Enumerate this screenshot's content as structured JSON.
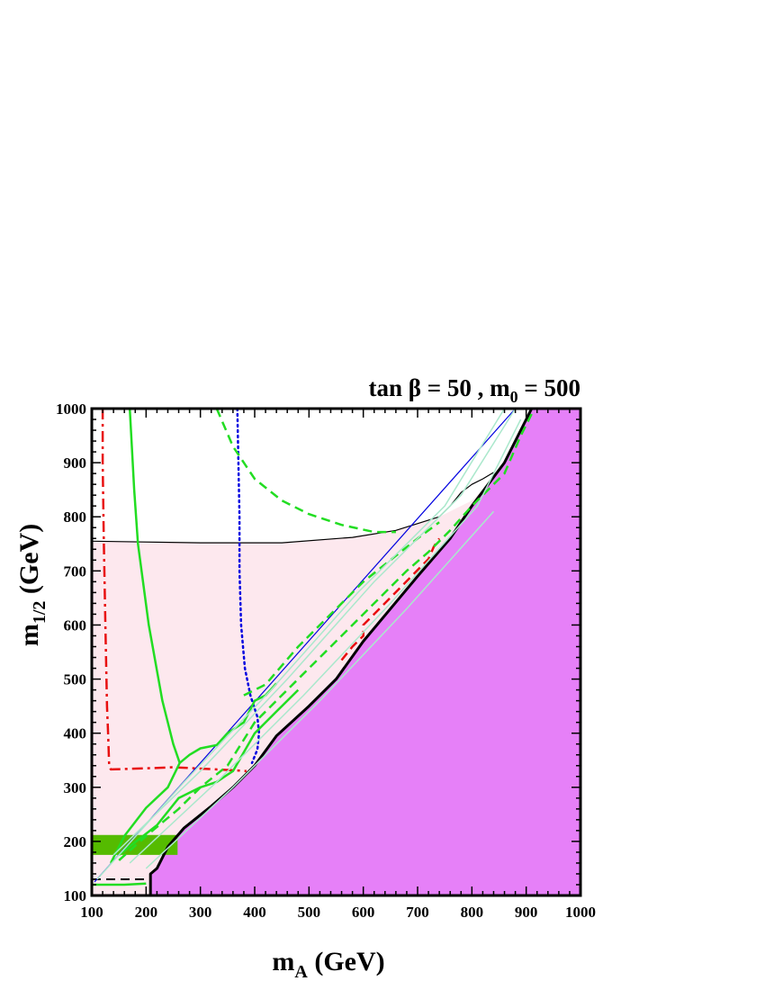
{
  "chart_data": {
    "type": "area",
    "title": "tan β = 50 , m",
    "title_sub": "0",
    "title_tail": " = 500",
    "xlabel": "m",
    "xlabel_sub": "A",
    "xlabel_tail": " (GeV)",
    "ylabel": "m",
    "ylabel_sub": "1/2",
    "ylabel_tail": " (GeV)",
    "xlim": [
      100,
      1000
    ],
    "ylim": [
      100,
      1000
    ],
    "xticks": [
      100,
      200,
      300,
      400,
      500,
      600,
      700,
      800,
      900,
      1000
    ],
    "yticks": [
      100,
      200,
      300,
      400,
      500,
      600,
      700,
      800,
      900,
      1000
    ],
    "grid": false,
    "colors": {
      "excluded": "#e680f8",
      "pink_region": "#fde8ee",
      "green_band": "#55bb00",
      "green": "#22dd22",
      "light_green": "#aae8cc",
      "red": "#e81010",
      "blue": "#0000e0",
      "black": "#000000"
    },
    "regions": [
      {
        "id": "excluded",
        "points": [
          [
            208,
            100
          ],
          [
            208,
            140
          ],
          [
            220,
            150
          ],
          [
            240,
            190
          ],
          [
            270,
            225
          ],
          [
            320,
            265
          ],
          [
            360,
            300
          ],
          [
            400,
            340
          ],
          [
            440,
            395
          ],
          [
            500,
            450
          ],
          [
            550,
            500
          ],
          [
            600,
            570
          ],
          [
            650,
            630
          ],
          [
            700,
            690
          ],
          [
            760,
            760
          ],
          [
            800,
            820
          ],
          [
            830,
            860
          ],
          [
            860,
            900
          ],
          [
            900,
            980
          ],
          [
            910,
            1000
          ],
          [
            1000,
            1000
          ],
          [
            1000,
            100
          ]
        ]
      },
      {
        "id": "pink",
        "points": [
          [
            100,
            100
          ],
          [
            100,
            755
          ],
          [
            300,
            752
          ],
          [
            450,
            752
          ],
          [
            580,
            762
          ],
          [
            660,
            775
          ],
          [
            740,
            800
          ],
          [
            800,
            830
          ],
          [
            830,
            860
          ],
          [
            800,
            820
          ],
          [
            760,
            760
          ],
          [
            700,
            690
          ],
          [
            650,
            630
          ],
          [
            600,
            570
          ],
          [
            550,
            500
          ],
          [
            500,
            450
          ],
          [
            440,
            395
          ],
          [
            400,
            340
          ],
          [
            360,
            300
          ],
          [
            320,
            265
          ],
          [
            270,
            225
          ],
          [
            240,
            190
          ],
          [
            220,
            150
          ],
          [
            208,
            140
          ],
          [
            208,
            100
          ]
        ]
      },
      {
        "id": "green-band",
        "points": [
          [
            100,
            175
          ],
          [
            258,
            175
          ],
          [
            258,
            212
          ],
          [
            100,
            212
          ]
        ]
      }
    ],
    "curves": [
      {
        "id": "black-thin",
        "style": "solid",
        "color": "black",
        "width": 1.2,
        "points": [
          [
            100,
            755
          ],
          [
            300,
            752
          ],
          [
            450,
            752
          ],
          [
            580,
            762
          ],
          [
            660,
            775
          ],
          [
            740,
            800
          ],
          [
            760,
            820
          ],
          [
            780,
            845
          ],
          [
            800,
            860
          ],
          [
            820,
            870
          ],
          [
            840,
            882
          ]
        ]
      },
      {
        "id": "black-thick",
        "style": "solid",
        "color": "black",
        "width": 3,
        "points": [
          [
            208,
            100
          ],
          [
            208,
            140
          ],
          [
            220,
            150
          ],
          [
            240,
            190
          ],
          [
            270,
            225
          ],
          [
            320,
            265
          ],
          [
            360,
            300
          ],
          [
            400,
            340
          ],
          [
            440,
            395
          ],
          [
            500,
            450
          ],
          [
            550,
            500
          ],
          [
            600,
            570
          ],
          [
            650,
            630
          ],
          [
            700,
            690
          ],
          [
            760,
            760
          ],
          [
            800,
            820
          ],
          [
            830,
            860
          ],
          [
            860,
            900
          ],
          [
            900,
            980
          ],
          [
            910,
            1000
          ]
        ]
      },
      {
        "id": "black-dashed",
        "style": "dashed",
        "color": "black",
        "width": 2,
        "points": [
          [
            100,
            130
          ],
          [
            208,
            130
          ]
        ]
      },
      {
        "id": "red-dashdot",
        "style": "dashdot",
        "color": "red",
        "width": 2.5,
        "points": [
          [
            120,
            1000
          ],
          [
            120,
            900
          ],
          [
            122,
            760
          ],
          [
            125,
            600
          ],
          [
            128,
            450
          ],
          [
            130,
            400
          ],
          [
            132,
            340
          ],
          [
            135,
            333
          ],
          [
            200,
            335
          ],
          [
            250,
            337
          ],
          [
            330,
            333
          ],
          [
            385,
            330
          ]
        ]
      },
      {
        "id": "red-dashed-lower",
        "style": "dashed",
        "color": "red",
        "width": 2.5,
        "points": [
          [
            560,
            535
          ],
          [
            580,
            560
          ],
          [
            600,
            580
          ],
          [
            600,
            600
          ],
          [
            610,
            610
          ],
          [
            620,
            620
          ],
          [
            720,
            722
          ],
          [
            730,
            745
          ],
          [
            740,
            760
          ]
        ]
      },
      {
        "id": "blue-diagonal",
        "style": "solid",
        "color": "blue",
        "width": 1.2,
        "points": [
          [
            105,
            125
          ],
          [
            880,
            1000
          ]
        ]
      },
      {
        "id": "blue-dotted",
        "style": "dotted",
        "color": "blue",
        "width": 2.5,
        "points": [
          [
            368,
            1000
          ],
          [
            370,
            900
          ],
          [
            372,
            800
          ],
          [
            372,
            700
          ],
          [
            375,
            600
          ],
          [
            382,
            520
          ],
          [
            392,
            470
          ],
          [
            405,
            430
          ],
          [
            408,
            400
          ],
          [
            405,
            370
          ],
          [
            395,
            345
          ]
        ]
      },
      {
        "id": "green-solid-left",
        "style": "solid",
        "color": "green",
        "width": 2.5,
        "points": [
          [
            170,
            1000
          ],
          [
            178,
            850
          ],
          [
            185,
            750
          ],
          [
            205,
            600
          ],
          [
            230,
            460
          ],
          [
            250,
            380
          ],
          [
            262,
            345
          ]
        ]
      },
      {
        "id": "green-solid-band",
        "style": "solid",
        "color": "green",
        "width": 2.5,
        "points": [
          [
            135,
            160
          ],
          [
            160,
            210
          ],
          [
            200,
            262
          ],
          [
            240,
            300
          ],
          [
            262,
            345
          ],
          [
            280,
            360
          ],
          [
            300,
            372
          ],
          [
            330,
            378
          ],
          [
            350,
            400
          ],
          [
            380,
            420
          ],
          [
            400,
            460
          ],
          [
            420,
            470
          ],
          [
            440,
            492
          ]
        ]
      },
      {
        "id": "green-solid-low",
        "style": "solid",
        "color": "green",
        "width": 2.5,
        "points": [
          [
            100,
            120
          ],
          [
            160,
            120
          ],
          [
            200,
            122
          ]
        ]
      },
      {
        "id": "green-solid-mid",
        "style": "solid",
        "color": "green",
        "width": 2.5,
        "points": [
          [
            150,
            175
          ],
          [
            220,
            230
          ],
          [
            260,
            280
          ],
          [
            300,
            300
          ],
          [
            330,
            310
          ],
          [
            360,
            330
          ],
          [
            400,
            400
          ],
          [
            440,
            440
          ],
          [
            480,
            480
          ]
        ]
      },
      {
        "id": "green-dashed-upper",
        "style": "dashed",
        "color": "green",
        "width": 2.5,
        "points": [
          [
            330,
            1000
          ],
          [
            360,
            930
          ],
          [
            400,
            870
          ],
          [
            450,
            830
          ],
          [
            500,
            805
          ],
          [
            560,
            785
          ],
          [
            620,
            772
          ],
          [
            660,
            772
          ]
        ]
      },
      {
        "id": "green-dashed-lower",
        "style": "dashed",
        "color": "green",
        "width": 2.5,
        "points": [
          [
            150,
            165
          ],
          [
            200,
            210
          ],
          [
            260,
            260
          ],
          [
            300,
            300
          ],
          [
            350,
            340
          ],
          [
            400,
            420
          ],
          [
            440,
            460
          ],
          [
            500,
            520
          ],
          [
            560,
            580
          ],
          [
            620,
            640
          ],
          [
            680,
            700
          ],
          [
            720,
            735
          ],
          [
            760,
            775
          ],
          [
            800,
            820
          ],
          [
            830,
            850
          ],
          [
            860,
            880
          ],
          [
            890,
            950
          ],
          [
            910,
            990
          ]
        ]
      },
      {
        "id": "green-dashed-mid",
        "style": "dashed",
        "color": "green",
        "width": 2.5,
        "points": [
          [
            380,
            470
          ],
          [
            420,
            490
          ],
          [
            480,
            560
          ],
          [
            540,
            620
          ],
          [
            600,
            680
          ],
          [
            650,
            720
          ],
          [
            700,
            760
          ],
          [
            740,
            790
          ]
        ]
      },
      {
        "id": "light-green-1",
        "style": "solid",
        "color": "light_green",
        "width": 1.5,
        "points": [
          [
            140,
            175
          ],
          [
            300,
            330
          ],
          [
            460,
            500
          ],
          [
            620,
            680
          ],
          [
            780,
            840
          ],
          [
            880,
            1000
          ]
        ]
      },
      {
        "id": "light-green-2",
        "style": "solid",
        "color": "light_green",
        "width": 1.5,
        "points": [
          [
            110,
            130
          ],
          [
            270,
            310
          ],
          [
            430,
            480
          ],
          [
            590,
            660
          ],
          [
            750,
            820
          ],
          [
            860,
            1000
          ]
        ]
      },
      {
        "id": "light-green-3",
        "style": "solid",
        "color": "light_green",
        "width": 1.5,
        "points": [
          [
            170,
            160
          ],
          [
            330,
            310
          ],
          [
            490,
            470
          ],
          [
            650,
            640
          ],
          [
            810,
            820
          ],
          [
            890,
            980
          ]
        ]
      },
      {
        "id": "light-green-4",
        "style": "solid",
        "color": "light_green",
        "width": 1.5,
        "points": [
          [
            200,
            150
          ],
          [
            360,
            300
          ],
          [
            520,
            460
          ],
          [
            680,
            630
          ],
          [
            840,
            810
          ]
        ]
      }
    ]
  }
}
